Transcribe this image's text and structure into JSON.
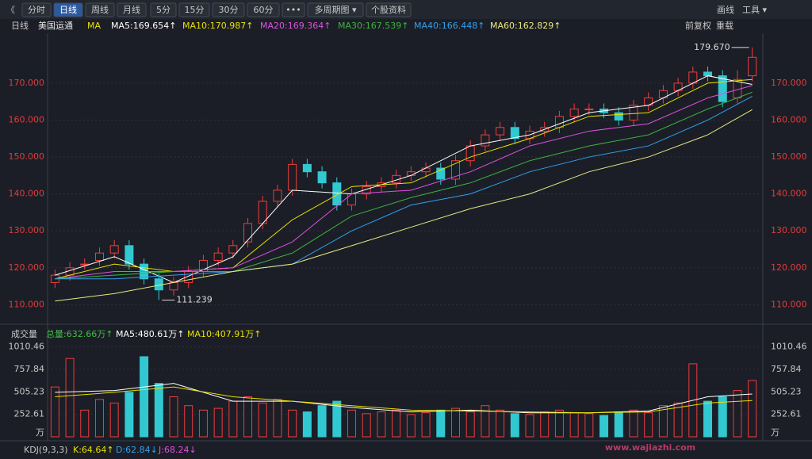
{
  "toolbar": {
    "back": "《",
    "buttons": [
      "分时",
      "日线",
      "周线",
      "月线",
      "5分",
      "15分",
      "30分",
      "60分",
      "•••",
      "多周期图 ▾",
      "个股资料"
    ],
    "active": 1,
    "right": [
      "画线",
      "工具 ▾"
    ]
  },
  "header": {
    "period": "日线",
    "stock": "美国运通",
    "ma": "MA",
    "legends": [
      {
        "label": "MA5:169.654↑",
        "color": "#ffffff"
      },
      {
        "label": "MA10:170.987↑",
        "color": "#e8e000"
      },
      {
        "label": "MA20:169.364↑",
        "color": "#e050e0"
      },
      {
        "label": "MA30:167.539↑",
        "color": "#40b040"
      },
      {
        "label": "MA40:166.448↑",
        "color": "#30a0f0"
      },
      {
        "label": "MA60:162.829↑",
        "color": "#e8e880"
      }
    ],
    "right": [
      "前复权",
      "重载"
    ]
  },
  "chart_data": [
    {
      "type": "candlestick",
      "ylim": [
        106,
        182
      ],
      "yticks": [
        {
          "value": 110,
          "label": "110.000"
        },
        {
          "value": 120,
          "label": "120.000"
        },
        {
          "value": 130,
          "label": "130.000"
        },
        {
          "value": 140,
          "label": "140.000"
        },
        {
          "value": 150,
          "label": "150.000"
        },
        {
          "value": 160,
          "label": "160.000"
        },
        {
          "value": 170,
          "label": "170.000"
        }
      ],
      "grid": true,
      "up_color": "#f03c3c",
      "down_color": "#32c8d2",
      "open": [
        116,
        118,
        121,
        122,
        124,
        126,
        121,
        117,
        114,
        116,
        119,
        122,
        124,
        127,
        132,
        138,
        141,
        148,
        146,
        143,
        137,
        140,
        142,
        143,
        145,
        146,
        147,
        144,
        149,
        153,
        156,
        158,
        155,
        157,
        158,
        161,
        163,
        163,
        162,
        160,
        164,
        166,
        168,
        170,
        173,
        172,
        166,
        172
      ],
      "high": [
        119.5,
        121.5,
        122.5,
        125.5,
        127.5,
        127.5,
        122.5,
        118.5,
        117.5,
        120.5,
        123.5,
        125.5,
        127.5,
        133.5,
        139.5,
        142.5,
        149.5,
        149.5,
        147.5,
        144.5,
        141.5,
        143.5,
        144.5,
        146.5,
        147.5,
        148.5,
        148.5,
        150.5,
        154.5,
        157.5,
        159.5,
        159.5,
        158.5,
        159.5,
        162.5,
        164.5,
        164.5,
        164.5,
        163.5,
        165.5,
        167.5,
        169.5,
        171.5,
        174.5,
        174.5,
        173.5,
        173.5,
        179.67
      ],
      "low": [
        114.5,
        116.5,
        119.5,
        120.5,
        122.5,
        119.5,
        115.5,
        111.239,
        112.5,
        114.5,
        117.5,
        120.5,
        122.5,
        125.5,
        130.5,
        136.5,
        139.5,
        144.5,
        141.5,
        135.5,
        135.5,
        138.5,
        140.5,
        141.5,
        143.5,
        144.5,
        142.5,
        142.5,
        147.5,
        151.5,
        154.5,
        153.5,
        153.5,
        155.5,
        156.5,
        159.5,
        161.5,
        160.5,
        158.5,
        158.5,
        162.5,
        164.5,
        166.5,
        168.5,
        170.5,
        163.5,
        164.5,
        170.5
      ],
      "close": [
        118,
        120,
        121,
        124,
        126,
        121,
        117,
        114,
        116,
        119,
        122,
        124,
        126,
        132,
        138,
        141,
        148,
        146,
        143,
        137,
        140,
        142,
        143,
        145,
        146,
        147,
        144,
        149,
        153,
        156,
        158,
        155,
        157,
        158,
        161,
        163,
        163,
        162,
        160,
        164,
        166,
        168,
        170,
        173,
        172,
        165,
        171,
        177
      ],
      "ma_x": [
        0,
        4,
        8,
        12,
        16,
        20,
        24,
        28,
        32,
        36,
        40,
        44,
        47
      ],
      "series": [
        {
          "name": "MA5",
          "color": "#ffffff",
          "values": [
            118,
            123,
            116,
            123,
            141,
            140,
            145,
            153,
            156,
            162,
            164,
            172,
            169.654
          ]
        },
        {
          "name": "MA10",
          "color": "#e8e000",
          "values": [
            117,
            121,
            119,
            120,
            133,
            142,
            143,
            150,
            155,
            161,
            162,
            170,
            170.987
          ]
        },
        {
          "name": "MA20",
          "color": "#e050e0",
          "values": [
            117,
            119,
            119,
            120,
            127,
            140,
            141,
            146,
            153,
            157,
            159,
            166,
            169.364
          ]
        },
        {
          "name": "MA30",
          "color": "#40b040",
          "values": [
            117,
            118,
            119,
            119,
            124,
            134,
            139,
            143,
            149,
            153,
            156,
            163,
            167.539
          ]
        },
        {
          "name": "MA40",
          "color": "#30a0f0",
          "values": [
            117,
            117,
            118,
            119,
            121,
            130,
            137,
            140,
            146,
            150,
            153,
            160,
            166.448
          ]
        },
        {
          "name": "MA60",
          "color": "#e8e880",
          "values": [
            111,
            113,
            116,
            119,
            121,
            126,
            131,
            136,
            140,
            146,
            150,
            156,
            162.829
          ]
        }
      ],
      "annotations": [
        {
          "label": "179.670",
          "index": 47,
          "value": 179.67,
          "side": "left"
        },
        {
          "label": "111.239",
          "index": 7,
          "value": 111.239,
          "side": "right"
        }
      ]
    },
    {
      "type": "volume",
      "title": "成交量",
      "legends": [
        {
          "label": "总量:632.66万↑",
          "color": "#40c040"
        },
        {
          "label": "MA5:480.61万↑",
          "color": "#ffffff"
        },
        {
          "label": "MA10:407.91万↑",
          "color": "#e8e000"
        }
      ],
      "ylim": [
        0,
        1060
      ],
      "yticks": [
        252.61,
        505.23,
        757.84,
        1010.46
      ],
      "unit": "万",
      "values": [
        560,
        880,
        300,
        420,
        380,
        500,
        900,
        600,
        450,
        350,
        300,
        320,
        400,
        450,
        380,
        420,
        300,
        280,
        350,
        400,
        300,
        260,
        280,
        300,
        250,
        270,
        300,
        320,
        280,
        350,
        300,
        260,
        250,
        280,
        300,
        270,
        260,
        240,
        280,
        300,
        270,
        350,
        380,
        820,
        400,
        450,
        520,
        632.66
      ],
      "ma_x": [
        0,
        4,
        8,
        12,
        16,
        20,
        24,
        28,
        32,
        36,
        40,
        44,
        47
      ],
      "series": [
        {
          "name": "MA5",
          "color": "#ffffff",
          "values": [
            500,
            520,
            600,
            400,
            400,
            330,
            280,
            300,
            270,
            270,
            290,
            450,
            480.61
          ]
        },
        {
          "name": "MA10",
          "color": "#e8e000",
          "values": [
            450,
            500,
            560,
            450,
            400,
            350,
            300,
            290,
            280,
            270,
            280,
            380,
            407.91
          ]
        }
      ]
    }
  ],
  "kdj": {
    "title": "KDJ(9,3,3)",
    "items": [
      {
        "label": "K:64.64↑",
        "color": "#e8e000"
      },
      {
        "label": "D:62.84↓",
        "color": "#30a0f0"
      },
      {
        "label": "J:68.24↓",
        "color": "#e050e0"
      }
    ]
  },
  "watermark": "www.wajiazhi.com"
}
